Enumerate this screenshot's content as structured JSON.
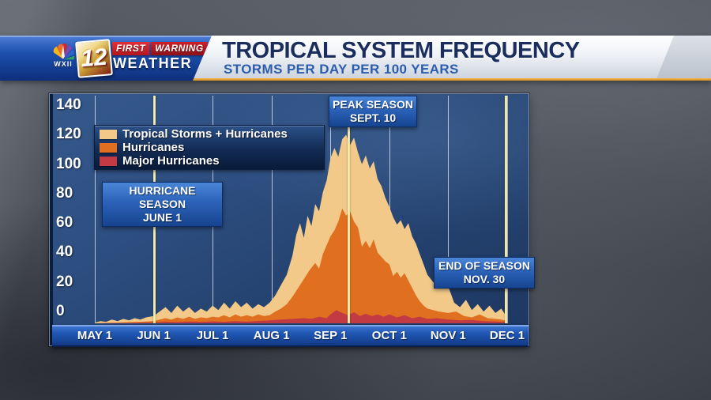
{
  "header": {
    "station": "WXII",
    "channel": "12",
    "brand_first": "FIRST",
    "brand_warning": "WARNING",
    "brand_weather": "WEATHER",
    "title": "TROPICAL SYSTEM FREQUENCY",
    "subtitle": "STORMS PER DAY PER 100 YEARS",
    "accent_gold": "#e8a33d",
    "banner_blue": "#1d50ae"
  },
  "chart_data": {
    "type": "area",
    "title": "TROPICAL SYSTEM FREQUENCY",
    "subtitle": "STORMS PER DAY PER 100 YEARS",
    "x_tick_labels": [
      "MAY 1",
      "JUN 1",
      "JUL 1",
      "AUG 1",
      "SEP 1",
      "OCT 1",
      "NOV 1",
      "DEC 1"
    ],
    "month_start_days": [
      0,
      31,
      61,
      92,
      123,
      153,
      184,
      214
    ],
    "y_ticks": [
      0,
      20,
      40,
      60,
      80,
      100,
      120,
      140
    ],
    "ylim": [
      0,
      150
    ],
    "grid": true,
    "legend_position": "top-left",
    "plot_bg": "#2d4e80",
    "grid_color": "#ecf2fa",
    "event_line_color": "#f8efb4",
    "series": [
      {
        "name": "Tropical Storms + Hurricanes",
        "color": "#f2c988",
        "points": [
          [
            0,
            0.5
          ],
          [
            3,
            1.5
          ],
          [
            6,
            1
          ],
          [
            9,
            2.5
          ],
          [
            12,
            1.5
          ],
          [
            15,
            3
          ],
          [
            18,
            2
          ],
          [
            21,
            3.5
          ],
          [
            24,
            2.5
          ],
          [
            27,
            4
          ],
          [
            31,
            5
          ],
          [
            34,
            8
          ],
          [
            37,
            11
          ],
          [
            40,
            7
          ],
          [
            43,
            12
          ],
          [
            46,
            8
          ],
          [
            49,
            11
          ],
          [
            52,
            7
          ],
          [
            55,
            10
          ],
          [
            58,
            8
          ],
          [
            61,
            12
          ],
          [
            64,
            9
          ],
          [
            67,
            14
          ],
          [
            70,
            10
          ],
          [
            73,
            15
          ],
          [
            76,
            11
          ],
          [
            79,
            14
          ],
          [
            82,
            10
          ],
          [
            85,
            13
          ],
          [
            88,
            11
          ],
          [
            91,
            14
          ],
          [
            94,
            19
          ],
          [
            97,
            26
          ],
          [
            100,
            33
          ],
          [
            103,
            46
          ],
          [
            105,
            60
          ],
          [
            107,
            68
          ],
          [
            109,
            58
          ],
          [
            111,
            73
          ],
          [
            113,
            66
          ],
          [
            115,
            81
          ],
          [
            117,
            76
          ],
          [
            119,
            89
          ],
          [
            121,
            97
          ],
          [
            123,
            112
          ],
          [
            125,
            119
          ],
          [
            127,
            113
          ],
          [
            129,
            125
          ],
          [
            131,
            128
          ],
          [
            133,
            121
          ],
          [
            135,
            126
          ],
          [
            137,
            116
          ],
          [
            139,
            108
          ],
          [
            141,
            114
          ],
          [
            143,
            105
          ],
          [
            145,
            110
          ],
          [
            147,
            98
          ],
          [
            149,
            93
          ],
          [
            151,
            85
          ],
          [
            153,
            79
          ],
          [
            155,
            72
          ],
          [
            157,
            67
          ],
          [
            159,
            70
          ],
          [
            161,
            64
          ],
          [
            163,
            68
          ],
          [
            165,
            59
          ],
          [
            167,
            54
          ],
          [
            169,
            47
          ],
          [
            171,
            40
          ],
          [
            173,
            33
          ],
          [
            176,
            28
          ],
          [
            179,
            24
          ],
          [
            181,
            31
          ],
          [
            184,
            25
          ],
          [
            187,
            14
          ],
          [
            190,
            11
          ],
          [
            193,
            16
          ],
          [
            196,
            9
          ],
          [
            199,
            13
          ],
          [
            202,
            8
          ],
          [
            205,
            12
          ],
          [
            208,
            7
          ],
          [
            211,
            10
          ],
          [
            213,
            6
          ],
          [
            214,
            4
          ]
        ]
      },
      {
        "name": "Hurricanes",
        "color": "#e06f1f",
        "points": [
          [
            0,
            0
          ],
          [
            6,
            0.3
          ],
          [
            12,
            0.5
          ],
          [
            18,
            0.8
          ],
          [
            24,
            1
          ],
          [
            31,
            1.5
          ],
          [
            34,
            2.5
          ],
          [
            37,
            3.5
          ],
          [
            40,
            2.5
          ],
          [
            43,
            4
          ],
          [
            46,
            3
          ],
          [
            49,
            4.5
          ],
          [
            52,
            3
          ],
          [
            55,
            4
          ],
          [
            58,
            3.5
          ],
          [
            61,
            4.5
          ],
          [
            64,
            4
          ],
          [
            67,
            5.5
          ],
          [
            70,
            4
          ],
          [
            73,
            6
          ],
          [
            76,
            4.5
          ],
          [
            79,
            5.5
          ],
          [
            82,
            4.5
          ],
          [
            85,
            6
          ],
          [
            88,
            5
          ],
          [
            91,
            5.5
          ],
          [
            94,
            8
          ],
          [
            97,
            10
          ],
          [
            100,
            13
          ],
          [
            103,
            18
          ],
          [
            106,
            24
          ],
          [
            109,
            30
          ],
          [
            112,
            36
          ],
          [
            115,
            41
          ],
          [
            117,
            37
          ],
          [
            119,
            47
          ],
          [
            121,
            53
          ],
          [
            123,
            59
          ],
          [
            125,
            63
          ],
          [
            127,
            69
          ],
          [
            129,
            78
          ],
          [
            131,
            73
          ],
          [
            133,
            76
          ],
          [
            135,
            69
          ],
          [
            137,
            65
          ],
          [
            139,
            52
          ],
          [
            141,
            56
          ],
          [
            143,
            51
          ],
          [
            145,
            57
          ],
          [
            147,
            48
          ],
          [
            149,
            45
          ],
          [
            151,
            42
          ],
          [
            153,
            40
          ],
          [
            155,
            32
          ],
          [
            157,
            35
          ],
          [
            159,
            31
          ],
          [
            161,
            34
          ],
          [
            163,
            29
          ],
          [
            165,
            24
          ],
          [
            167,
            19
          ],
          [
            169,
            15
          ],
          [
            171,
            12
          ],
          [
            173,
            10
          ],
          [
            176,
            9
          ],
          [
            179,
            8
          ],
          [
            184,
            7
          ],
          [
            188,
            8
          ],
          [
            192,
            5
          ],
          [
            196,
            4
          ],
          [
            200,
            6
          ],
          [
            204,
            3.5
          ],
          [
            208,
            3
          ],
          [
            211,
            2.5
          ],
          [
            214,
            1.5
          ]
        ]
      },
      {
        "name": "Major Hurricanes",
        "color": "#c23a43",
        "points": [
          [
            0,
            0
          ],
          [
            12,
            0.2
          ],
          [
            24,
            0.4
          ],
          [
            31,
            0.6
          ],
          [
            37,
            1
          ],
          [
            43,
            0.8
          ],
          [
            49,
            1.2
          ],
          [
            55,
            0.9
          ],
          [
            61,
            1.3
          ],
          [
            67,
            1
          ],
          [
            73,
            1.5
          ],
          [
            79,
            1.1
          ],
          [
            85,
            1.6
          ],
          [
            91,
            2
          ],
          [
            97,
            2.5
          ],
          [
            103,
            3
          ],
          [
            109,
            3.5
          ],
          [
            113,
            3
          ],
          [
            117,
            4.5
          ],
          [
            121,
            3.5
          ],
          [
            123,
            6
          ],
          [
            126,
            9
          ],
          [
            129,
            7
          ],
          [
            132,
            5.5
          ],
          [
            135,
            7.5
          ],
          [
            138,
            5
          ],
          [
            141,
            6.5
          ],
          [
            144,
            5
          ],
          [
            147,
            6
          ],
          [
            150,
            4.5
          ],
          [
            153,
            6
          ],
          [
            157,
            4
          ],
          [
            161,
            5.5
          ],
          [
            165,
            3.5
          ],
          [
            169,
            4.5
          ],
          [
            173,
            3
          ],
          [
            178,
            3.5
          ],
          [
            184,
            2.5
          ],
          [
            190,
            2
          ],
          [
            196,
            2.3
          ],
          [
            202,
            1.5
          ],
          [
            208,
            1.2
          ],
          [
            214,
            0.8
          ]
        ]
      }
    ],
    "event_lines": [
      {
        "label": "HURRICANE SEASON",
        "sublabel": "JUNE 1",
        "day": 31
      },
      {
        "label": "PEAK SEASON",
        "sublabel": "SEPT. 10",
        "day": 132
      },
      {
        "label": "END OF SEASON",
        "sublabel": "NOV. 30",
        "day": 213
      }
    ]
  }
}
